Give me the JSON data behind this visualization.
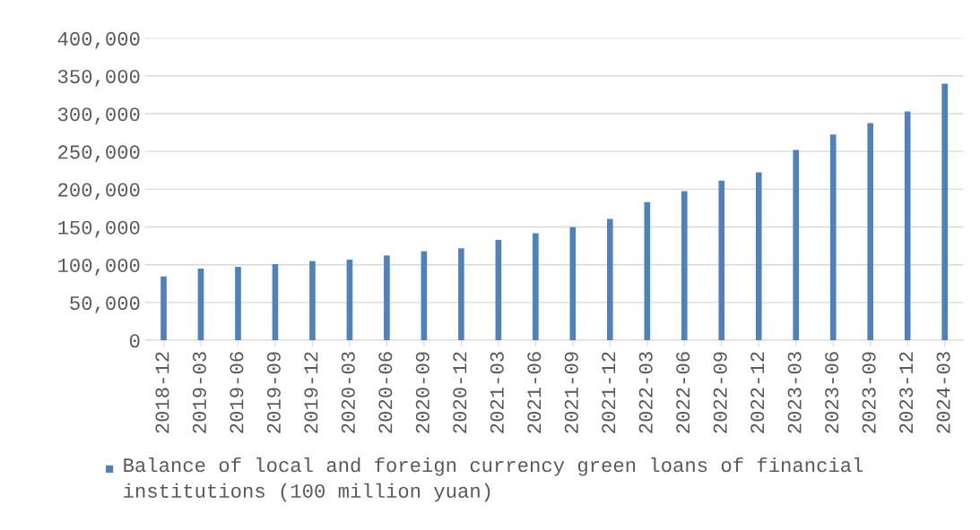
{
  "chart_data": {
    "type": "bar",
    "categories": [
      "2018-12",
      "2019-03",
      "2019-06",
      "2019-09",
      "2019-12",
      "2020-03",
      "2020-06",
      "2020-09",
      "2020-12",
      "2021-03",
      "2021-06",
      "2021-09",
      "2021-12",
      "2022-03",
      "2022-06",
      "2022-09",
      "2022-12",
      "2023-03",
      "2023-06",
      "2023-09",
      "2023-12",
      "2024-03"
    ],
    "series": [
      {
        "name": "Balance of local and foreign currency green loans of financial institutions (100 million yuan)",
        "color": "#4f81bd",
        "values": [
          84500,
          94800,
          97200,
          100800,
          104800,
          106700,
          112300,
          117900,
          121800,
          132900,
          141700,
          149700,
          160800,
          182900,
          197500,
          211300,
          222400,
          252000,
          272500,
          287500,
          302900,
          339700
        ]
      }
    ],
    "ylim": [
      0,
      400000
    ],
    "yticks": [
      {
        "value": 0,
        "label": "0"
      },
      {
        "value": 50000,
        "label": "50,000"
      },
      {
        "value": 100000,
        "label": "100,000"
      },
      {
        "value": 150000,
        "label": "150,000"
      },
      {
        "value": 200000,
        "label": "200,000"
      },
      {
        "value": 250000,
        "label": "250,000"
      },
      {
        "value": 300000,
        "label": "300,000"
      },
      {
        "value": 350000,
        "label": "350,000"
      },
      {
        "value": 400000,
        "label": "400,000"
      }
    ],
    "grid": "y",
    "legend": "bottom"
  }
}
